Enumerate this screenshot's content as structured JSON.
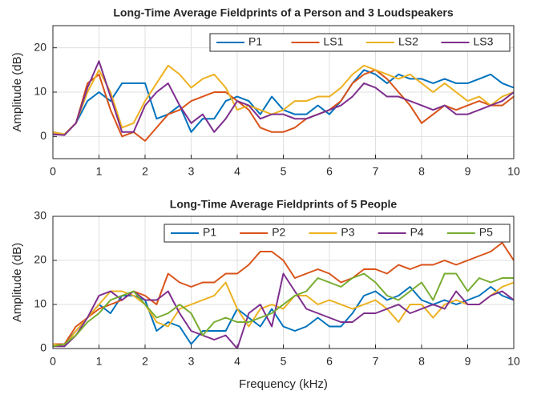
{
  "chart_data": [
    {
      "type": "line",
      "title": "Long-Time Average Fieldprints of a Person and 3 Loudspeakers",
      "ylabel": "Amplitude (dB)",
      "grid": true,
      "legend": "top-right",
      "x": [
        0,
        0.25,
        0.5,
        0.75,
        1,
        1.25,
        1.5,
        1.75,
        2,
        2.25,
        2.5,
        2.75,
        3,
        3.25,
        3.5,
        3.75,
        4,
        4.25,
        4.5,
        4.75,
        5,
        5.25,
        5.5,
        5.75,
        6,
        6.25,
        6.5,
        6.75,
        7,
        7.25,
        7.5,
        7.75,
        8,
        8.25,
        8.5,
        8.75,
        9,
        9.25,
        9.5,
        9.75,
        10
      ],
      "xlim": [
        0,
        10
      ],
      "xticks": [
        0,
        1,
        2,
        3,
        4,
        5,
        6,
        7,
        8,
        9,
        10
      ],
      "ylim": [
        -5,
        25
      ],
      "yticks": [
        0,
        10,
        20
      ],
      "series": [
        {
          "name": "P1",
          "color": "#0072BD",
          "values": [
            1,
            0.5,
            3,
            8,
            10,
            8,
            12,
            12,
            12,
            4,
            5,
            7,
            1,
            4,
            4,
            8,
            9,
            8,
            5,
            9,
            6,
            5,
            5,
            7,
            5,
            8,
            12,
            15,
            14,
            12,
            14,
            13,
            13,
            12,
            13,
            12,
            12,
            13,
            14,
            12,
            11
          ]
        },
        {
          "name": "LS1",
          "color": "#D95319",
          "values": [
            0.5,
            0.5,
            3,
            12,
            14,
            6,
            0,
            1,
            -1,
            2,
            5,
            6,
            8,
            9,
            10,
            10,
            8,
            6,
            2,
            1,
            1,
            2,
            4,
            5,
            6,
            8,
            12,
            14,
            15,
            13,
            10,
            7,
            3,
            5,
            7,
            6,
            7,
            8,
            7,
            7,
            9
          ]
        },
        {
          "name": "LS2",
          "color": "#EDB120",
          "values": [
            1,
            0.5,
            3,
            10,
            15,
            10,
            2,
            3,
            8,
            12,
            16,
            14,
            11,
            13,
            14,
            11,
            6,
            7,
            6,
            5,
            6,
            8,
            8,
            9,
            9,
            11,
            14,
            16,
            15,
            14,
            13,
            14,
            12,
            10,
            12,
            10,
            8,
            9,
            7,
            9,
            10
          ]
        },
        {
          "name": "LS3",
          "color": "#7E2F8E",
          "values": [
            0.5,
            0.3,
            3,
            11,
            17,
            9,
            1,
            1,
            7,
            10,
            12,
            7,
            3,
            5,
            1,
            4,
            8,
            7,
            4,
            5,
            5,
            4,
            4,
            5,
            6,
            7,
            9,
            12,
            11,
            9,
            9,
            8,
            7,
            6,
            7,
            5,
            5,
            6,
            7,
            8,
            10
          ]
        }
      ]
    },
    {
      "type": "line",
      "title": "Long-Time Average Fieldprints of 5 People",
      "xlabel": "Frequency (kHz)",
      "ylabel": "Amplitude (dB)",
      "grid": true,
      "legend": "top-right",
      "x": [
        0,
        0.25,
        0.5,
        0.75,
        1,
        1.25,
        1.5,
        1.75,
        2,
        2.25,
        2.5,
        2.75,
        3,
        3.25,
        3.5,
        3.75,
        4,
        4.25,
        4.5,
        4.75,
        5,
        5.25,
        5.5,
        5.75,
        6,
        6.25,
        6.5,
        6.75,
        7,
        7.25,
        7.5,
        7.75,
        8,
        8.25,
        8.5,
        8.75,
        9,
        9.25,
        9.5,
        9.75,
        10
      ],
      "xlim": [
        0,
        10
      ],
      "xticks": [
        0,
        1,
        2,
        3,
        4,
        5,
        6,
        7,
        8,
        9,
        10
      ],
      "ylim": [
        0,
        30
      ],
      "yticks": [
        0,
        10,
        20,
        30
      ],
      "series": [
        {
          "name": "P1",
          "color": "#0072BD",
          "values": [
            1,
            1,
            4,
            7,
            10,
            8,
            12,
            12,
            11,
            4,
            6,
            5,
            1,
            4,
            4,
            4,
            9,
            7,
            5,
            9,
            5,
            4,
            5,
            7,
            5,
            5,
            8,
            12,
            13,
            11,
            12,
            14,
            11,
            10,
            11,
            10,
            11,
            12,
            14,
            12,
            11
          ]
        },
        {
          "name": "P2",
          "color": "#D95319",
          "values": [
            1,
            1,
            5,
            7,
            9,
            10,
            11,
            13,
            12,
            10,
            17,
            15,
            14,
            15,
            15,
            17,
            17,
            19,
            22,
            22,
            20,
            16,
            17,
            18,
            17,
            15,
            16,
            18,
            18,
            17,
            19,
            18,
            19,
            19,
            20,
            19,
            20,
            21,
            22,
            24,
            20
          ]
        },
        {
          "name": "P3",
          "color": "#EDB120",
          "values": [
            1,
            0.5,
            4,
            7,
            10,
            13,
            13,
            12,
            10,
            6,
            5,
            9,
            10,
            11,
            12,
            15,
            9,
            5,
            9,
            10,
            9,
            12,
            12,
            10,
            11,
            10,
            9,
            10,
            11,
            9,
            6,
            10,
            10,
            7,
            10,
            11,
            10,
            10,
            12,
            14,
            15
          ]
        },
        {
          "name": "P4",
          "color": "#7E2F8E",
          "values": [
            0.5,
            0.5,
            3,
            7,
            12,
            13,
            11,
            13,
            11,
            11,
            13,
            8,
            4,
            3,
            2,
            3,
            0,
            8,
            10,
            5,
            17,
            13,
            9,
            8,
            7,
            6,
            6,
            8,
            8,
            9,
            10,
            8,
            9,
            10,
            9,
            13,
            10,
            10,
            12,
            13,
            11
          ]
        },
        {
          "name": "P5",
          "color": "#77AC30",
          "values": [
            0.5,
            1,
            3,
            6,
            8,
            11,
            12,
            13,
            10,
            7,
            8,
            10,
            8,
            3,
            6,
            7,
            6,
            6,
            7,
            8,
            10,
            12,
            13,
            16,
            15,
            14,
            16,
            17,
            15,
            12,
            11,
            13,
            15,
            11,
            17,
            17,
            13,
            16,
            15,
            16,
            16
          ]
        }
      ]
    }
  ]
}
